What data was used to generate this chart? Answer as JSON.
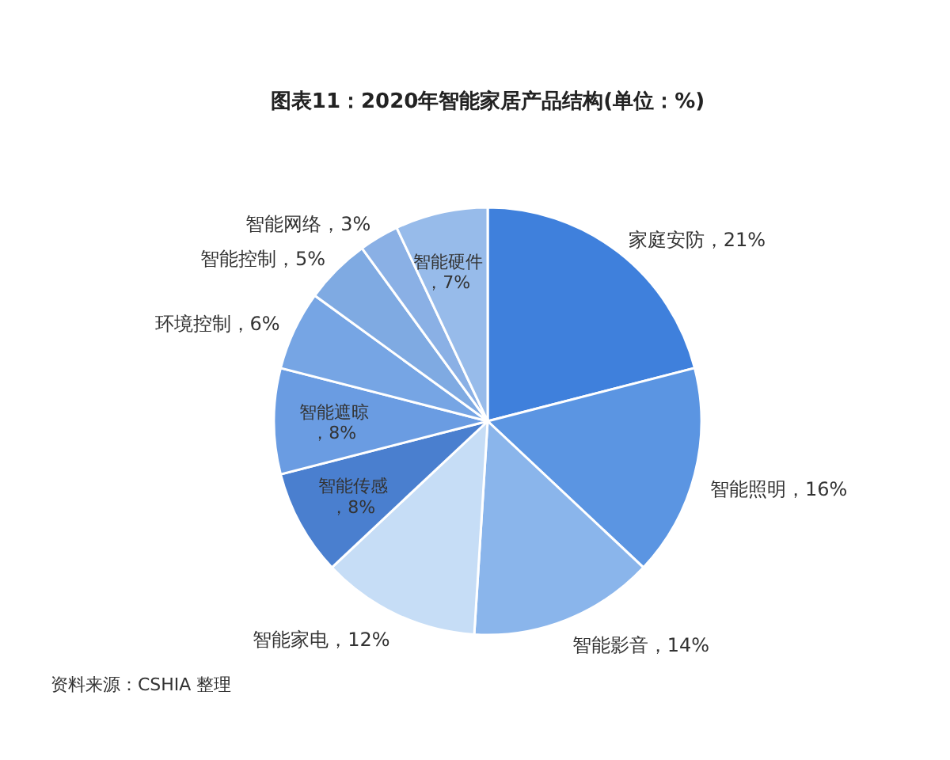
{
  "chart_data": {
    "type": "pie",
    "title": "图表11：2020年智能家居产品结构(单位：%)",
    "categories": [
      "家庭安防",
      "智能照明",
      "智能影音",
      "智能家电",
      "智能传感",
      "智能遮晾",
      "环境控制",
      "智能控制",
      "智能网络",
      "智能硬件"
    ],
    "values": [
      21,
      16,
      14,
      12,
      8,
      8,
      6,
      5,
      3,
      7
    ],
    "value_labels": [
      "，21%",
      "，16%",
      "，14%",
      "，12%",
      "，8%",
      "，8%",
      "，6%",
      "，5%",
      "，3%",
      "，7%"
    ],
    "colors": [
      "#3f80dc",
      "#5b95e2",
      "#8ab5eb",
      "#c6ddf6",
      "#4a7fcf",
      "#6a9ce2",
      "#76a5e4",
      "#7faae2",
      "#8ab0e5",
      "#97bbea"
    ],
    "annotations": [
      "资料来源：CSHIA 整理"
    ]
  }
}
